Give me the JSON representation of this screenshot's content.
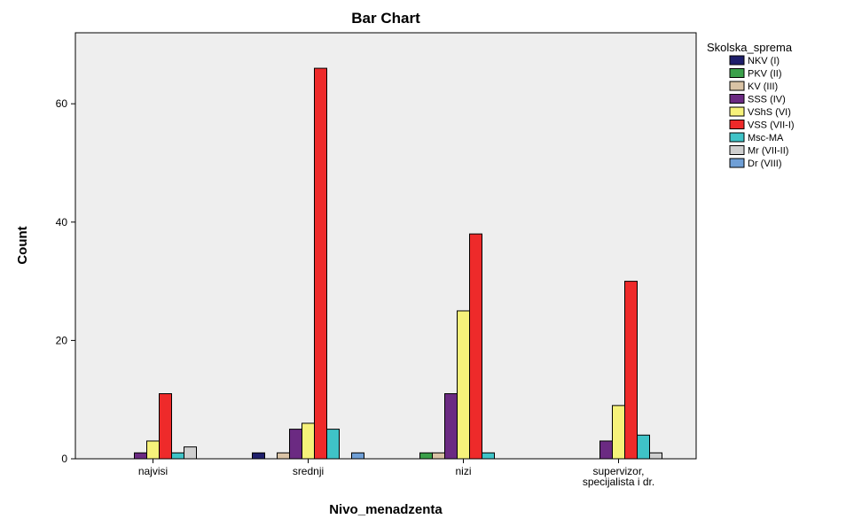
{
  "chart_data": {
    "type": "bar",
    "title": "Bar Chart",
    "xlabel": "Nivo_menadzenta",
    "ylabel": "Count",
    "ylim": [
      0,
      72
    ],
    "yticks": [
      0,
      20,
      40,
      60
    ],
    "grid": false,
    "legend_title": "Skolska_sprema",
    "legend_position": "right",
    "categories": [
      [
        "najvisi"
      ],
      [
        "srednji"
      ],
      [
        "nizi"
      ],
      [
        "supervizor,",
        "specijalista i dr."
      ]
    ],
    "series": [
      {
        "name": "NKV (I)",
        "color": "#1f1f6b",
        "values": [
          0,
          1,
          0,
          0
        ]
      },
      {
        "name": "PKV (II)",
        "color": "#3aa04a",
        "values": [
          0,
          0,
          1,
          0
        ]
      },
      {
        "name": "KV (III)",
        "color": "#d9c3a5",
        "values": [
          0,
          1,
          1,
          0
        ]
      },
      {
        "name": "SSS (IV)",
        "color": "#6b2a82",
        "values": [
          1,
          5,
          11,
          3
        ]
      },
      {
        "name": "VShS (VI)",
        "color": "#f6f27a",
        "values": [
          3,
          6,
          25,
          9
        ]
      },
      {
        "name": "VSS (VII-I)",
        "color": "#ee2a2a",
        "values": [
          11,
          66,
          38,
          30
        ]
      },
      {
        "name": "Msc-MA",
        "color": "#3fc3c7",
        "values": [
          1,
          5,
          1,
          4
        ]
      },
      {
        "name": "Mr (VII-II)",
        "color": "#cfcfcf",
        "values": [
          2,
          0,
          0,
          1
        ]
      },
      {
        "name": "Dr (VIII)",
        "color": "#6f9fd6",
        "values": [
          0,
          1,
          0,
          0
        ]
      }
    ]
  }
}
